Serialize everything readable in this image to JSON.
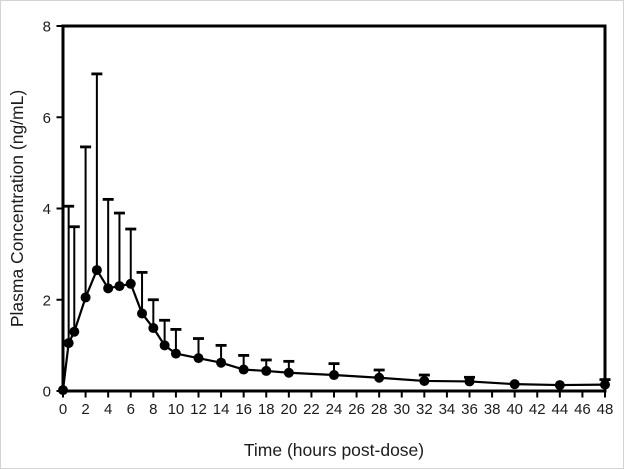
{
  "figure": {
    "title": "",
    "xlabel": "Time (hours post-dose)",
    "ylabel": "Plasma Concentration (ng/mL)"
  },
  "chart_data": {
    "type": "line",
    "series_name": "mean-plasma-concentration",
    "marker": "filled-circle",
    "line_color": "#000000",
    "marker_color": "#000000",
    "error_bars": "upper-only-with-caps",
    "grid": false,
    "legend_position": "none",
    "xlabel": "Time (hours post-dose)",
    "ylabel": "Plasma Concentration (ng/mL)",
    "xlim": [
      0,
      48
    ],
    "ylim": [
      0,
      8
    ],
    "x_ticks": [
      0,
      2,
      4,
      6,
      8,
      10,
      12,
      14,
      16,
      18,
      20,
      22,
      24,
      26,
      28,
      30,
      32,
      34,
      36,
      38,
      40,
      42,
      44,
      46,
      48
    ],
    "y_ticks": [
      0,
      2,
      4,
      6,
      8
    ],
    "x": [
      0,
      0.5,
      1,
      2,
      3,
      4,
      5,
      6,
      7,
      8,
      9,
      10,
      12,
      14,
      16,
      18,
      20,
      24,
      28,
      32,
      36,
      40,
      44,
      48
    ],
    "mean": [
      0.02,
      1.05,
      1.3,
      2.05,
      2.65,
      2.25,
      2.3,
      2.35,
      1.7,
      1.38,
      1.0,
      0.82,
      0.72,
      0.62,
      0.47,
      0.44,
      0.4,
      0.35,
      0.29,
      0.22,
      0.21,
      0.15,
      0.13,
      0.14
    ],
    "upper_error_top": [
      null,
      4.05,
      3.6,
      5.35,
      6.95,
      4.2,
      3.9,
      3.55,
      2.6,
      2.0,
      1.55,
      1.35,
      1.15,
      1.0,
      0.78,
      0.68,
      0.65,
      0.6,
      0.46,
      0.35,
      0.3,
      null,
      null,
      0.25
    ]
  }
}
